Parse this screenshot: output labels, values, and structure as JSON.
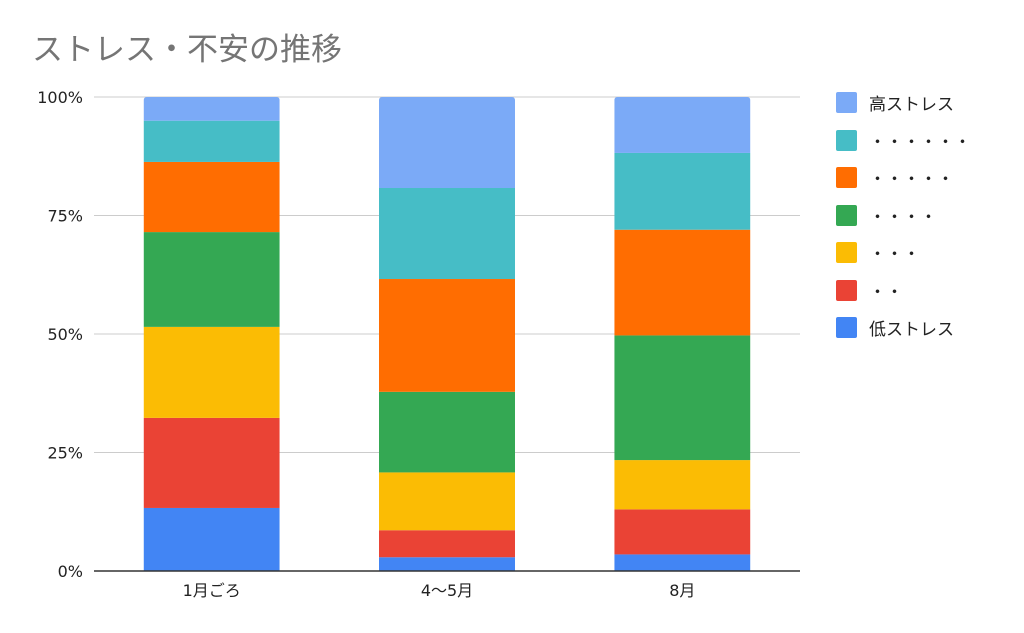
{
  "chart_data": {
    "type": "bar",
    "stacked": true,
    "percent_stacked": true,
    "title": "ストレス・不安の推移",
    "categories": [
      "1月ごろ",
      "4〜5月",
      "8月"
    ],
    "y_ticks": [
      "0%",
      "25%",
      "50%",
      "75%",
      "100%"
    ],
    "ylim": [
      0,
      100
    ],
    "grid": true,
    "legend_position": "right",
    "series": [
      {
        "name": "低ストレス",
        "color": "#4285f4",
        "values": [
          13.3,
          2.9,
          3.5
        ]
      },
      {
        "name": "・・",
        "color": "#ea4335",
        "values": [
          19.0,
          5.7,
          9.5
        ]
      },
      {
        "name": "・・・",
        "color": "#fbbc04",
        "values": [
          19.2,
          12.2,
          10.4
        ]
      },
      {
        "name": "・・・・",
        "color": "#34a853",
        "values": [
          20.0,
          17.0,
          26.3
        ]
      },
      {
        "name": "・・・・・",
        "color": "#ff6d01",
        "values": [
          14.8,
          23.8,
          22.3
        ]
      },
      {
        "name": "・・・・・・",
        "color": "#46bdc6",
        "values": [
          8.7,
          19.2,
          16.2
        ]
      },
      {
        "name": "高ストレス",
        "color": "#7baaf7",
        "values": [
          5.0,
          19.2,
          11.8
        ]
      }
    ]
  }
}
